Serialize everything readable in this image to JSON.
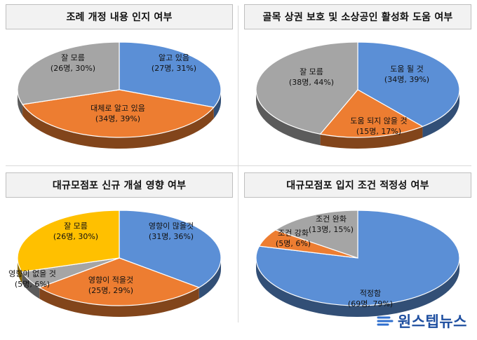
{
  "chart_data": [
    {
      "type": "pie",
      "title": "조례 개정 내용 인지 여부",
      "slices": [
        {
          "label": "알고 있음",
          "detail": "(27명, 31%)",
          "count": 27,
          "percent": 31,
          "color": "#5b8fd6"
        },
        {
          "label": "대체로 알고 있음",
          "detail": "(34명, 39%)",
          "count": 34,
          "percent": 39,
          "color": "#ed7d31"
        },
        {
          "label": "잘 모름",
          "detail": "(26명, 30%)",
          "count": 26,
          "percent": 30,
          "color": "#a5a5a5"
        }
      ]
    },
    {
      "type": "pie",
      "title": "골목 상권 보호 및 소상공인 활성화 도움 여부",
      "slices": [
        {
          "label": "도움 될 것",
          "detail": "(34명, 39%)",
          "count": 34,
          "percent": 39,
          "color": "#5b8fd6"
        },
        {
          "label": "도움 되지 않을 것",
          "detail": "(15명, 17%)",
          "count": 15,
          "percent": 17,
          "color": "#ed7d31"
        },
        {
          "label": "잘 모름",
          "detail": "(38명, 44%)",
          "count": 38,
          "percent": 44,
          "color": "#a5a5a5"
        }
      ]
    },
    {
      "type": "pie",
      "title": "대규모점포 신규 개설 영향 여부",
      "slices": [
        {
          "label": "영향이 많을것",
          "detail": "(31명, 36%)",
          "count": 31,
          "percent": 36,
          "color": "#5b8fd6"
        },
        {
          "label": "영향이 적을것",
          "detail": "(25명, 29%)",
          "count": 25,
          "percent": 29,
          "color": "#ed7d31"
        },
        {
          "label": "영향이 없을 것",
          "detail": "(5명, 6%)",
          "count": 5,
          "percent": 6,
          "color": "#a5a5a5"
        },
        {
          "label": "잘 모름",
          "detail": "(26명, 30%)",
          "count": 26,
          "percent": 30,
          "color": "#ffc000"
        }
      ]
    },
    {
      "type": "pie",
      "title": "대규모점포 입지 조건 적정성 여부",
      "slices": [
        {
          "label": "적정함",
          "detail": "(69명, 79%)",
          "count": 69,
          "percent": 79,
          "color": "#5b8fd6"
        },
        {
          "label": "조건 강화",
          "detail": "(5명, 6%)",
          "count": 5,
          "percent": 6,
          "color": "#ed7d31"
        },
        {
          "label": "조건 완화",
          "detail": "(13명, 15%)",
          "count": 13,
          "percent": 15,
          "color": "#a5a5a5"
        }
      ]
    }
  ],
  "logo": {
    "text": "원스텝뉴스"
  }
}
